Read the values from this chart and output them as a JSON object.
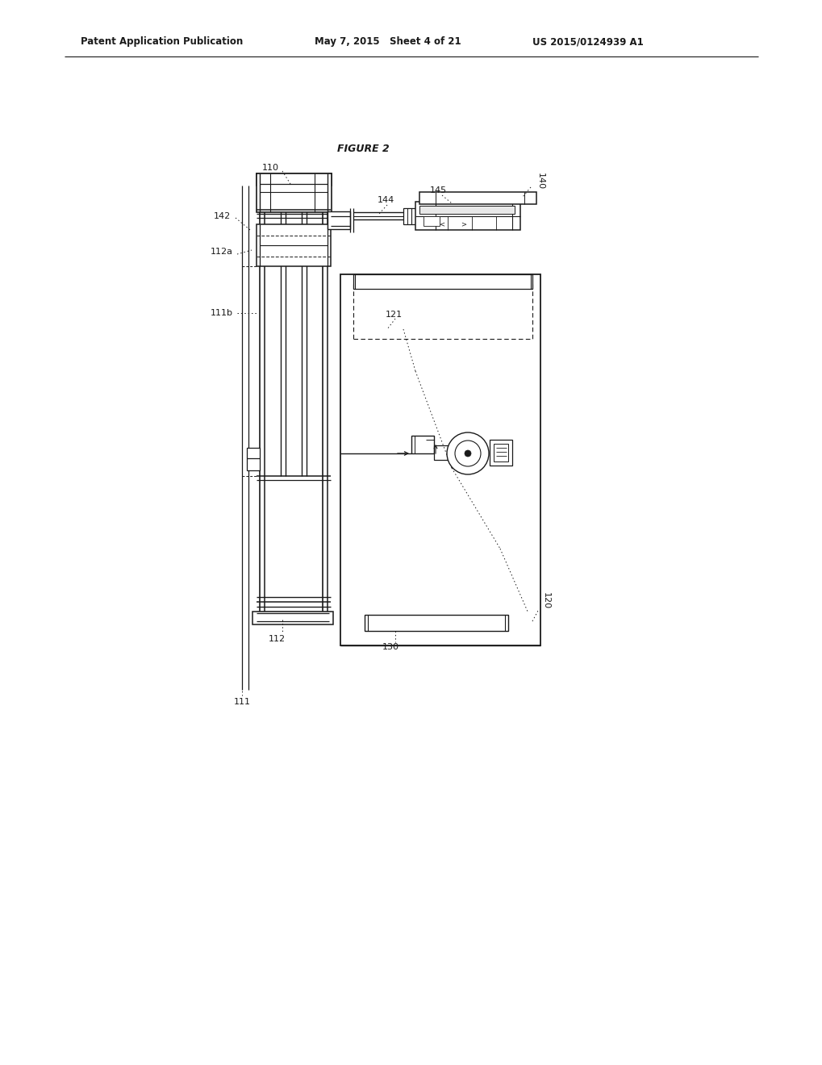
{
  "bg_color": "#ffffff",
  "line_color": "#1a1a1a",
  "text_color": "#1a1a1a",
  "header_left": "Patent Application Publication",
  "header_mid": "May 7, 2015   Sheet 4 of 21",
  "header_right": "US 2015/0124939 A1",
  "figure_title": "FIGURE 2"
}
